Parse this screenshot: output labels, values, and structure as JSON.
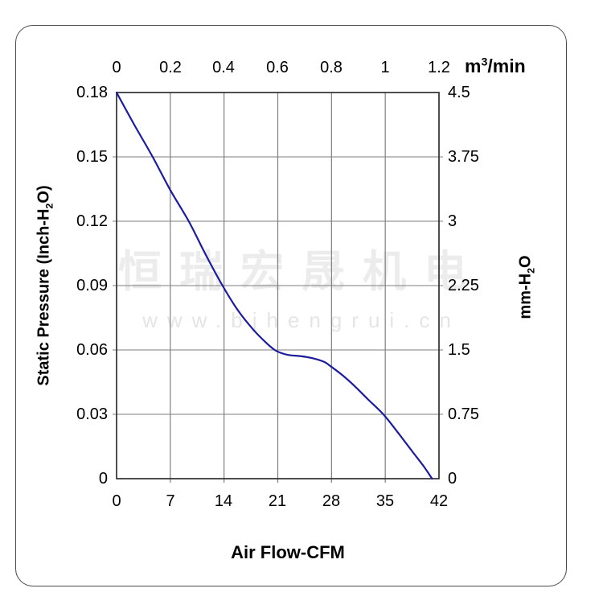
{
  "watermark": {
    "line1": "恒瑞宏晟机电",
    "line2": "www.bjhengrui.cn"
  },
  "chart_data": {
    "type": "line",
    "title": "",
    "grid": true,
    "x_axis_bottom": {
      "label": "Air Flow-CFM",
      "ticks": [
        "0",
        "7",
        "14",
        "21",
        "28",
        "35",
        "42"
      ],
      "range": [
        0,
        42
      ]
    },
    "x_axis_top": {
      "unit_pre": "m",
      "unit_sup": "3",
      "unit_post": "/min",
      "ticks": [
        "0",
        "0.2",
        "0.4",
        "0.6",
        "0.8",
        "1",
        "1.2"
      ],
      "range": [
        0,
        1.2
      ]
    },
    "y_axis_left": {
      "label_pre": "Static Pressure (Inch-H",
      "label_sub": "2",
      "label_post": "O)",
      "ticks": [
        "0.18",
        "0.15",
        "0.12",
        "0.09",
        "0.06",
        "0.03",
        "0"
      ],
      "range": [
        0,
        0.18
      ]
    },
    "y_axis_right": {
      "label_pre": "mm-H",
      "label_sub": "2",
      "label_post": "O",
      "ticks": [
        "4.5",
        "3.75",
        "3",
        "2.25",
        "1.5",
        "0.75",
        "0"
      ],
      "range": [
        0,
        4.5
      ]
    },
    "colors": {
      "curve": "#1c1c9e",
      "grid": "#7f7f7f",
      "frame": "#2f2f2f"
    },
    "series": [
      {
        "name": "fan-performance-curve",
        "x_unit": "CFM",
        "y_unit": "Inch-H2O",
        "points": [
          [
            0,
            0.18
          ],
          [
            2.3,
            0.165
          ],
          [
            4.7,
            0.15
          ],
          [
            7,
            0.1345
          ],
          [
            9.4,
            0.12
          ],
          [
            11.6,
            0.1045
          ],
          [
            13.8,
            0.09
          ],
          [
            15.8,
            0.0785
          ],
          [
            17.8,
            0.0695
          ],
          [
            19.5,
            0.0633
          ],
          [
            20.6,
            0.06
          ],
          [
            21.5,
            0.0585
          ],
          [
            22.5,
            0.0576
          ],
          [
            24,
            0.0571
          ],
          [
            25.5,
            0.0562
          ],
          [
            27,
            0.0545
          ],
          [
            28,
            0.0521
          ],
          [
            29.5,
            0.048
          ],
          [
            31,
            0.0432
          ],
          [
            32.8,
            0.0368
          ],
          [
            34.75,
            0.03
          ],
          [
            36.5,
            0.0222
          ],
          [
            38.5,
            0.0128
          ],
          [
            40,
            0.0058
          ],
          [
            41.1,
            0
          ]
        ]
      }
    ]
  }
}
